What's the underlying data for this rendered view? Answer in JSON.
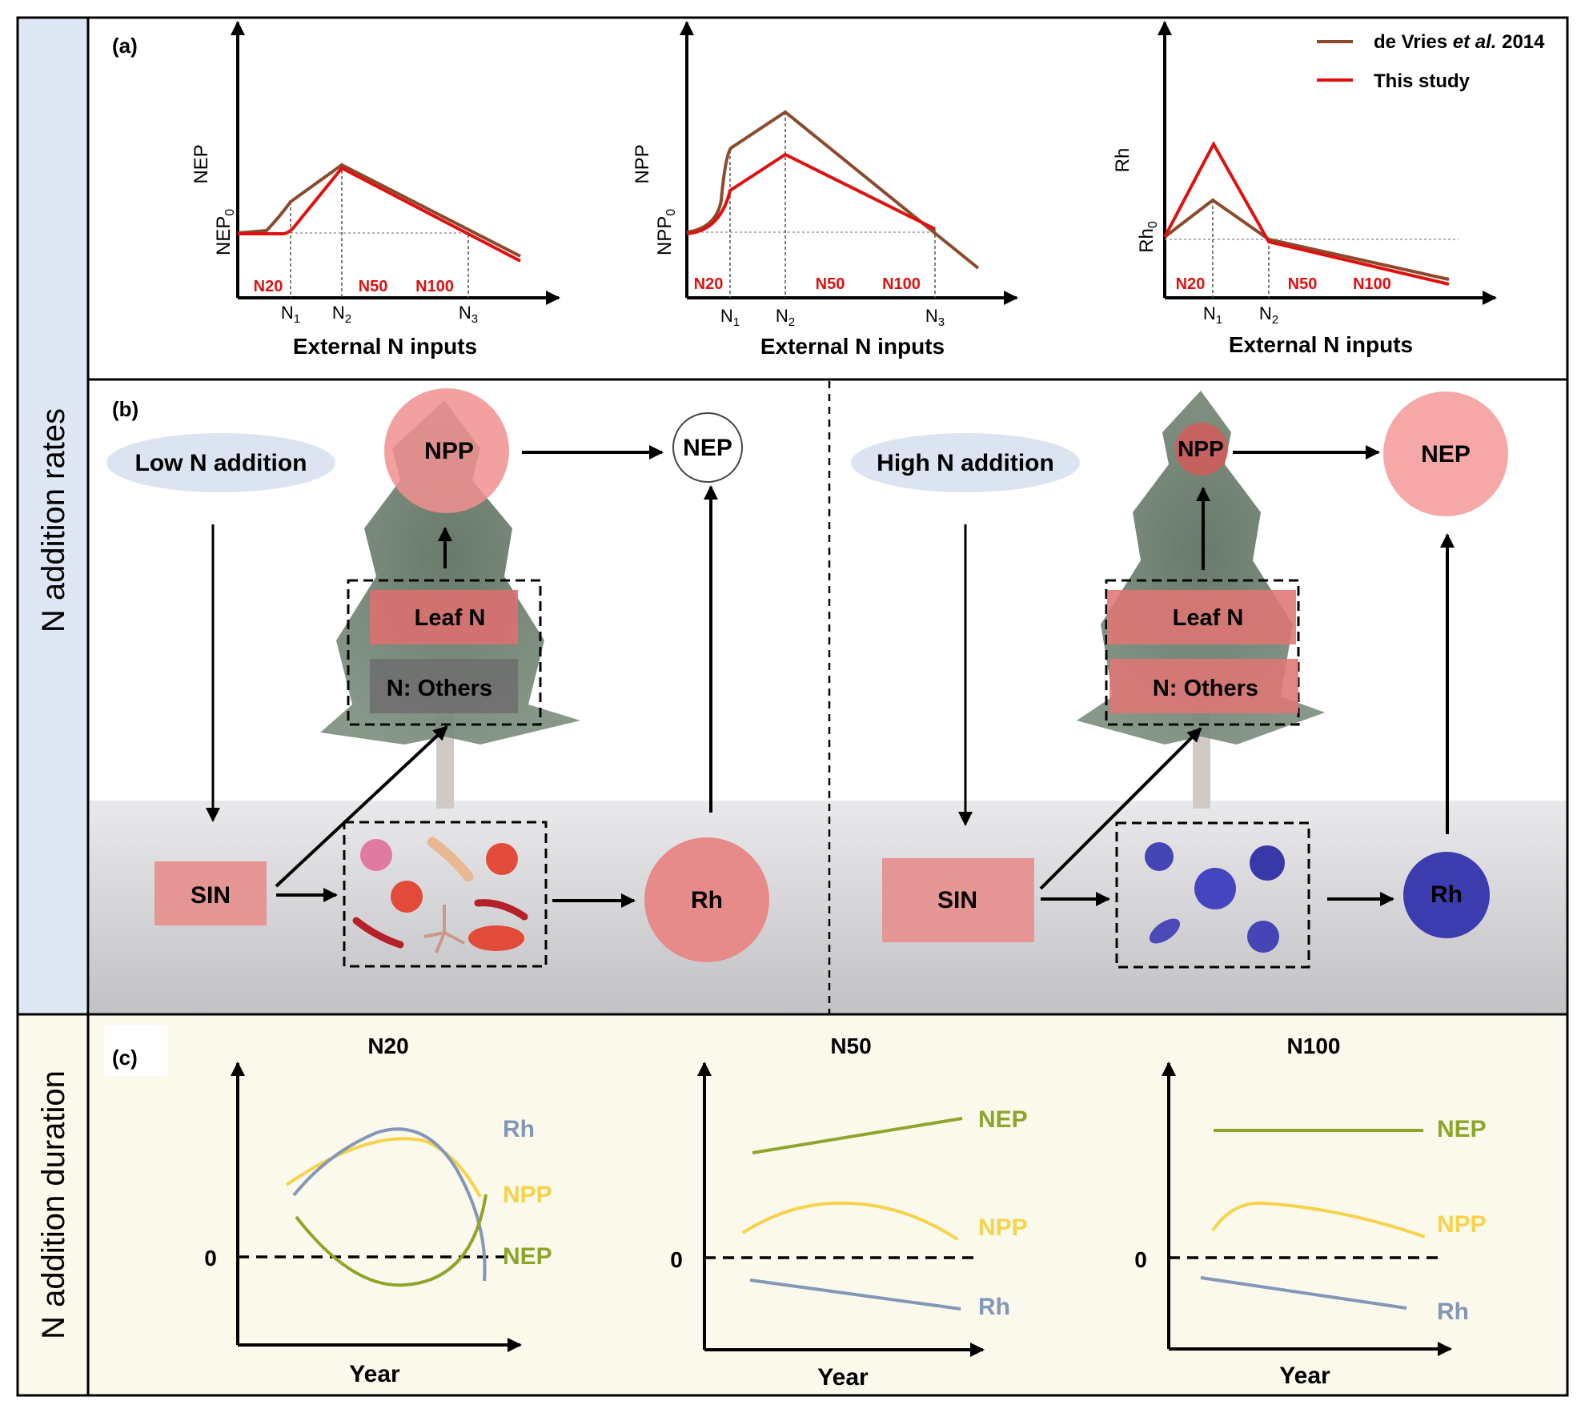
{
  "side_labels": {
    "rates": "N addition rates",
    "duration": "N addition duration"
  },
  "panel_a": {
    "label": "(a)",
    "legend": [
      {
        "name": "de Vries et al. 2014",
        "name_prefix": "de Vries ",
        "name_italic": "et al.",
        "name_suffix": " 2014",
        "color": "#8b4a2b"
      },
      {
        "name": "This study",
        "color": "#e01010"
      }
    ],
    "x_title": "External N inputs",
    "dose_labels": [
      "N20",
      "N50",
      "N100"
    ],
    "charts": [
      {
        "ylabel": "NEP",
        "baseline": "NEP",
        "baseline_sub": "0",
        "thresholds": [
          "N1",
          "N2",
          "N3"
        ]
      },
      {
        "ylabel": "NPP",
        "baseline": "NPP",
        "baseline_sub": "0",
        "thresholds": [
          "N1",
          "N2",
          "N3"
        ]
      },
      {
        "ylabel": "Rh",
        "baseline": "Rh",
        "baseline_sub": "0",
        "thresholds": [
          "N1",
          "N2"
        ]
      }
    ]
  },
  "panel_b": {
    "label": "(b)",
    "low": {
      "title": "Low N addition",
      "npp": "NPP",
      "nep": "NEP",
      "leaf": "Leaf N",
      "others": "N: Others",
      "sin": "SIN",
      "rh": "Rh"
    },
    "high": {
      "title": "High N addition",
      "npp": "NPP",
      "nep": "NEP",
      "leaf": "Leaf N",
      "others": "N: Others",
      "sin": "SIN",
      "rh": "Rh"
    },
    "colors": {
      "pink": "#f08f8f",
      "blue": "#3d3caf",
      "ellipse": "#dce4f2",
      "soil_top": "#e9e9ec",
      "soil_bottom": "#c4c4c7"
    }
  },
  "panel_c": {
    "label": "(c)",
    "x_title": "Year",
    "zero": "0",
    "charts": [
      {
        "title": "N20",
        "series": [
          {
            "name": "Rh",
            "color": "#8397b7"
          },
          {
            "name": "NPP",
            "color": "#f6d34a"
          },
          {
            "name": "NEP",
            "color": "#8ea52a"
          }
        ]
      },
      {
        "title": "N50",
        "series": [
          {
            "name": "NEP",
            "color": "#8ea52a"
          },
          {
            "name": "NPP",
            "color": "#f6d34a"
          },
          {
            "name": "Rh",
            "color": "#8397b7"
          }
        ]
      },
      {
        "title": "N100",
        "series": [
          {
            "name": "NEP",
            "color": "#8ea52a"
          },
          {
            "name": "NPP",
            "color": "#f6d34a"
          },
          {
            "name": "Rh",
            "color": "#8397b7"
          }
        ]
      }
    ]
  }
}
